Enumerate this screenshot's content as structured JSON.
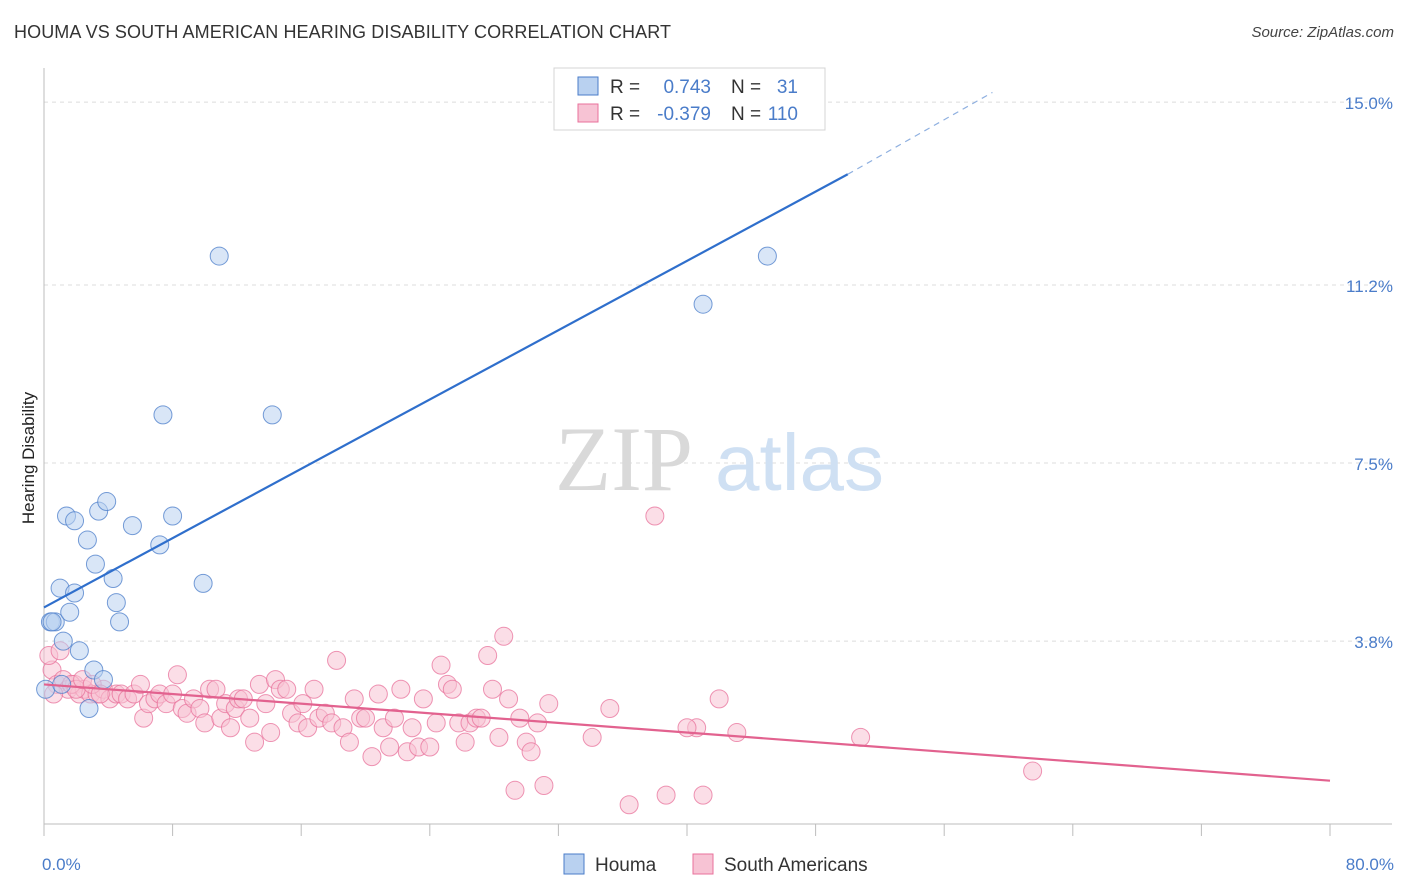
{
  "title": "HOUMA VS SOUTH AMERICAN HEARING DISABILITY CORRELATION CHART",
  "source": "Source: ZipAtlas.com",
  "watermark": {
    "zip": "ZIP",
    "atlas": "atlas"
  },
  "chart_data": {
    "type": "scatter",
    "title": "HOUMA VS SOUTH AMERICAN HEARING DISABILITY CORRELATION CHART",
    "xlabel": "",
    "ylabel": "Hearing Disability",
    "xlim": [
      0,
      80
    ],
    "ylim": [
      0,
      15.5
    ],
    "x_tick_labels": [
      "0.0%",
      "80.0%"
    ],
    "y_ticks": [
      3.8,
      7.5,
      11.2,
      15.0
    ],
    "y_tick_labels": [
      "3.8%",
      "7.5%",
      "11.2%",
      "15.0%"
    ],
    "grid": true,
    "legend": {
      "position": "top-center",
      "rows": [
        {
          "r_label": "R =",
          "r_value": "0.743",
          "n_label": "N =",
          "n_value": "31"
        },
        {
          "r_label": "R =",
          "r_value": "-0.379",
          "n_label": "N =",
          "n_value": "110"
        }
      ]
    },
    "series": [
      {
        "name": "Houma",
        "color": "#4a7cc9",
        "fill": "#b9d1f0",
        "trend": {
          "x0": 0,
          "y0": 4.5,
          "x1": 50,
          "y1": 13.5,
          "dash_to_x": 59,
          "dash_to_y": 15.2
        },
        "points": [
          [
            0.1,
            2.8
          ],
          [
            0.4,
            4.2
          ],
          [
            0.7,
            4.2
          ],
          [
            1.0,
            4.9
          ],
          [
            1.2,
            3.8
          ],
          [
            1.4,
            6.4
          ],
          [
            1.6,
            4.4
          ],
          [
            1.9,
            4.8
          ],
          [
            1.9,
            6.3
          ],
          [
            2.2,
            3.6
          ],
          [
            2.7,
            5.9
          ],
          [
            3.1,
            3.2
          ],
          [
            3.2,
            5.4
          ],
          [
            3.4,
            6.5
          ],
          [
            3.7,
            3.0
          ],
          [
            3.9,
            6.7
          ],
          [
            4.3,
            5.1
          ],
          [
            4.5,
            4.6
          ],
          [
            4.7,
            4.2
          ],
          [
            2.8,
            2.4
          ],
          [
            5.5,
            6.2
          ],
          [
            7.2,
            5.8
          ],
          [
            7.4,
            8.5
          ],
          [
            8.0,
            6.4
          ],
          [
            9.9,
            5.0
          ],
          [
            10.9,
            11.8
          ],
          [
            14.2,
            8.5
          ],
          [
            41.0,
            10.8
          ],
          [
            45.0,
            11.8
          ],
          [
            0.5,
            4.2
          ],
          [
            1.1,
            2.9
          ]
        ]
      },
      {
        "name": "South Americans",
        "color": "#e8719b",
        "fill": "#f7c3d4",
        "trend": {
          "x0": 0,
          "y0": 2.9,
          "x1": 80,
          "y1": 0.9
        },
        "points": [
          [
            0.5,
            3.2
          ],
          [
            0.8,
            2.9
          ],
          [
            1.2,
            3.0
          ],
          [
            1.5,
            2.8
          ],
          [
            1.9,
            2.9
          ],
          [
            2.2,
            2.7
          ],
          [
            2.5,
            2.8
          ],
          [
            2.9,
            2.7
          ],
          [
            3.3,
            2.7
          ],
          [
            3.7,
            2.8
          ],
          [
            4.1,
            2.6
          ],
          [
            4.5,
            2.7
          ],
          [
            4.8,
            2.7
          ],
          [
            5.2,
            2.6
          ],
          [
            5.6,
            2.7
          ],
          [
            6.0,
            2.9
          ],
          [
            6.2,
            2.2
          ],
          [
            6.5,
            2.5
          ],
          [
            6.9,
            2.6
          ],
          [
            7.2,
            2.7
          ],
          [
            7.6,
            2.5
          ],
          [
            8.0,
            2.7
          ],
          [
            8.3,
            3.1
          ],
          [
            8.6,
            2.4
          ],
          [
            8.9,
            2.3
          ],
          [
            9.3,
            2.6
          ],
          [
            9.7,
            2.4
          ],
          [
            10.0,
            2.1
          ],
          [
            10.3,
            2.8
          ],
          [
            10.7,
            2.8
          ],
          [
            11.0,
            2.2
          ],
          [
            11.3,
            2.5
          ],
          [
            11.6,
            2.0
          ],
          [
            11.9,
            2.4
          ],
          [
            12.1,
            2.6
          ],
          [
            12.4,
            2.6
          ],
          [
            12.8,
            2.2
          ],
          [
            13.1,
            1.7
          ],
          [
            13.4,
            2.9
          ],
          [
            13.8,
            2.5
          ],
          [
            14.1,
            1.9
          ],
          [
            14.4,
            3.0
          ],
          [
            14.7,
            2.8
          ],
          [
            15.1,
            2.8
          ],
          [
            15.4,
            2.3
          ],
          [
            15.8,
            2.1
          ],
          [
            16.1,
            2.5
          ],
          [
            16.4,
            2.0
          ],
          [
            16.8,
            2.8
          ],
          [
            17.1,
            2.2
          ],
          [
            17.5,
            2.3
          ],
          [
            17.9,
            2.1
          ],
          [
            18.2,
            3.4
          ],
          [
            18.6,
            2.0
          ],
          [
            19.0,
            1.7
          ],
          [
            19.3,
            2.6
          ],
          [
            19.7,
            2.2
          ],
          [
            20.0,
            2.2
          ],
          [
            20.4,
            1.4
          ],
          [
            20.8,
            2.7
          ],
          [
            21.1,
            2.0
          ],
          [
            21.5,
            1.6
          ],
          [
            21.8,
            2.2
          ],
          [
            22.2,
            2.8
          ],
          [
            22.6,
            1.5
          ],
          [
            22.9,
            2.0
          ],
          [
            23.3,
            1.6
          ],
          [
            23.6,
            2.6
          ],
          [
            24.0,
            1.6
          ],
          [
            24.4,
            2.1
          ],
          [
            24.7,
            3.3
          ],
          [
            25.1,
            2.9
          ],
          [
            25.4,
            2.8
          ],
          [
            25.8,
            2.1
          ],
          [
            26.2,
            1.7
          ],
          [
            26.5,
            2.1
          ],
          [
            26.9,
            2.2
          ],
          [
            27.2,
            2.2
          ],
          [
            27.6,
            3.5
          ],
          [
            27.9,
            2.8
          ],
          [
            28.3,
            1.8
          ],
          [
            28.6,
            3.9
          ],
          [
            28.9,
            2.6
          ],
          [
            29.3,
            0.7
          ],
          [
            29.6,
            2.2
          ],
          [
            30.0,
            1.7
          ],
          [
            30.3,
            1.5
          ],
          [
            30.7,
            2.1
          ],
          [
            31.1,
            0.8
          ],
          [
            31.4,
            2.5
          ],
          [
            34.1,
            1.8
          ],
          [
            35.2,
            2.4
          ],
          [
            36.4,
            0.4
          ],
          [
            38.0,
            6.4
          ],
          [
            38.7,
            0.6
          ],
          [
            40.6,
            2.0
          ],
          [
            41.0,
            0.6
          ],
          [
            42.0,
            2.6
          ],
          [
            43.1,
            1.9
          ],
          [
            50.8,
            1.8
          ],
          [
            61.5,
            1.1
          ],
          [
            0.3,
            3.5
          ],
          [
            0.6,
            2.7
          ],
          [
            1.0,
            3.6
          ],
          [
            1.7,
            2.9
          ],
          [
            2.0,
            2.8
          ],
          [
            2.4,
            3.0
          ],
          [
            3.0,
            2.9
          ],
          [
            3.5,
            2.7
          ],
          [
            40.0,
            2.0
          ]
        ]
      }
    ]
  },
  "bottom_legend": {
    "houma": "Houma",
    "south": "South Americans"
  }
}
